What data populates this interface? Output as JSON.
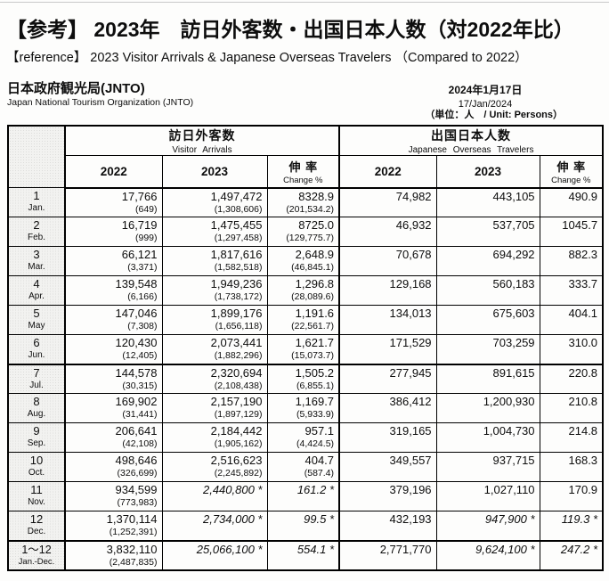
{
  "header": {
    "title_jp": "【参考】 2023年　訪日外客数・出国日本人数（対2022年比）",
    "title_en": "【reference】 2023 Visitor Arrivals & Japanese Overseas Travelers （Compared to 2022）",
    "org_jp": "日本政府観光局(JNTO)",
    "org_en": "Japan National Tourism Organization (JNTO)",
    "date_jp": "2024年1月17日",
    "date_en": "17/Jan/2024",
    "unit": "（単位：人　/ Unit: Persons）"
  },
  "table": {
    "groups": [
      {
        "jp": "訪日外客数",
        "en": "Visitor Arrivals"
      },
      {
        "jp": "出国日本人数",
        "en": "Japanese Overseas Travelers"
      }
    ],
    "col_headers": {
      "y2022": "2022",
      "y2023": "2023",
      "change_jp": "伸 率",
      "change_en": "Change %"
    },
    "rows": [
      {
        "m": "1",
        "m_en": "Jan.",
        "va22": "17,766",
        "va22_sub": "(649)",
        "va23": "1,497,472",
        "va23_sub": "(1,308,606)",
        "chg": "8328.9",
        "chg_sub": "(201,534.2)",
        "jo22": "74,982",
        "jo23": "443,105",
        "jochg": "490.9"
      },
      {
        "m": "2",
        "m_en": "Feb.",
        "va22": "16,719",
        "va22_sub": "(999)",
        "va23": "1,475,455",
        "va23_sub": "(1,297,458)",
        "chg": "8725.0",
        "chg_sub": "(129,775.7)",
        "jo22": "46,932",
        "jo23": "537,705",
        "jochg": "1045.7"
      },
      {
        "m": "3",
        "m_en": "Mar.",
        "va22": "66,121",
        "va22_sub": "(3,371)",
        "va23": "1,817,616",
        "va23_sub": "(1,582,518)",
        "chg": "2,648.9",
        "chg_sub": "(46,845.1)",
        "jo22": "70,678",
        "jo23": "694,292",
        "jochg": "882.3"
      },
      {
        "m": "4",
        "m_en": "Apr.",
        "va22": "139,548",
        "va22_sub": "(6,166)",
        "va23": "1,949,236",
        "va23_sub": "(1,738,172)",
        "chg": "1,296.8",
        "chg_sub": "(28,089.6)",
        "jo22": "129,168",
        "jo23": "560,183",
        "jochg": "333.7"
      },
      {
        "m": "5",
        "m_en": "May",
        "va22": "147,046",
        "va22_sub": "(7,308)",
        "va23": "1,899,176",
        "va23_sub": "(1,656,118)",
        "chg": "1,191.6",
        "chg_sub": "(22,561.7)",
        "jo22": "134,013",
        "jo23": "675,603",
        "jochg": "404.1"
      },
      {
        "m": "6",
        "m_en": "Jun.",
        "va22": "120,430",
        "va22_sub": "(12,405)",
        "va23": "2,073,441",
        "va23_sub": "(1,882,296)",
        "chg": "1,621.7",
        "chg_sub": "(15,073.7)",
        "jo22": "171,529",
        "jo23": "703,259",
        "jochg": "310.0"
      },
      {
        "m": "7",
        "m_en": "Jul.",
        "sep": true,
        "va22": "144,578",
        "va22_sub": "(30,315)",
        "va23": "2,320,694",
        "va23_sub": "(2,108,438)",
        "chg": "1,505.2",
        "chg_sub": "(6,855.1)",
        "jo22": "277,945",
        "jo23": "891,615",
        "jochg": "220.8"
      },
      {
        "m": "8",
        "m_en": "Aug.",
        "va22": "169,902",
        "va22_sub": "(31,441)",
        "va23": "2,157,190",
        "va23_sub": "(1,897,129)",
        "chg": "1,169.7",
        "chg_sub": "(5,933.9)",
        "jo22": "386,412",
        "jo23": "1,200,930",
        "jochg": "210.8"
      },
      {
        "m": "9",
        "m_en": "Sep.",
        "va22": "206,641",
        "va22_sub": "(42,108)",
        "va23": "2,184,442",
        "va23_sub": "(1,905,162)",
        "chg": "957.1",
        "chg_sub": "(4,424.5)",
        "jo22": "319,165",
        "jo23": "1,004,730",
        "jochg": "214.8"
      },
      {
        "m": "10",
        "m_en": "Oct.",
        "va22": "498,646",
        "va22_sub": "(326,699)",
        "va23": "2,516,623",
        "va23_sub": "(2,245,892)",
        "chg": "404.7",
        "chg_sub": "(587.4)",
        "jo22": "349,557",
        "jo23": "937,715",
        "jochg": "168.3"
      },
      {
        "m": "11",
        "m_en": "Nov.",
        "va22": "934,599",
        "va22_sub": "(773,983)",
        "va23": "2,440,800 *",
        "va23_est": true,
        "chg": "161.2 *",
        "chg_est": true,
        "jo22": "379,196",
        "jo23": "1,027,110",
        "jochg": "170.9"
      },
      {
        "m": "12",
        "m_en": "Dec.",
        "va22": "1,370,114",
        "va22_sub": "(1,252,391)",
        "va23": "2,734,000 *",
        "va23_est": true,
        "chg": "99.5 *",
        "chg_est": true,
        "jo22": "432,193",
        "jo23": "947,900 *",
        "jo23_est": true,
        "jochg": "119.3 *",
        "jochg_est": true
      },
      {
        "m": "1～12",
        "m_en": "Jan.-Dec.",
        "total": true,
        "va22": "3,832,110",
        "va22_sub": "(2,487,835)",
        "va23": "25,066,100 *",
        "va23_est": true,
        "chg": "554.1 *",
        "chg_est": true,
        "jo22": "2,771,770",
        "jo23": "9,624,100 *",
        "jo23_est": true,
        "jochg": "247.2 *",
        "jochg_est": true
      }
    ]
  }
}
